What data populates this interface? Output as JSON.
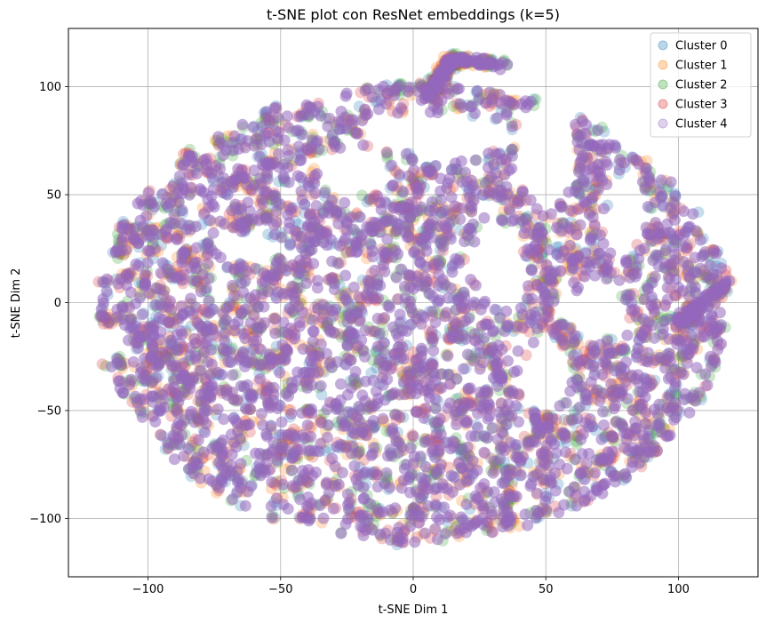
{
  "chart_data": {
    "type": "scatter",
    "title": "t-SNE plot con ResNet embeddings (k=5)",
    "xlabel": "t-SNE Dim 1",
    "ylabel": "t-SNE Dim 2",
    "xlim": [
      -130,
      130
    ],
    "ylim": [
      -127,
      127
    ],
    "xticks": [
      -100,
      -50,
      0,
      50,
      100
    ],
    "yticks": [
      -100,
      -50,
      0,
      50,
      100
    ],
    "xtick_labels": [
      "−100",
      "−50",
      "0",
      "50",
      "100"
    ],
    "ytick_labels": [
      "−100",
      "−50",
      "0",
      "50",
      "100"
    ],
    "grid": true,
    "legend_position": "top-right",
    "marker_alpha": 0.25,
    "series": [
      {
        "name": "Cluster 0",
        "color": "#1f77b4"
      },
      {
        "name": "Cluster 1",
        "color": "#ff7f0e"
      },
      {
        "name": "Cluster 2",
        "color": "#2ca02c"
      },
      {
        "name": "Cluster 3",
        "color": "#d62728"
      },
      {
        "name": "Cluster 4",
        "color": "#9467bd"
      }
    ]
  }
}
